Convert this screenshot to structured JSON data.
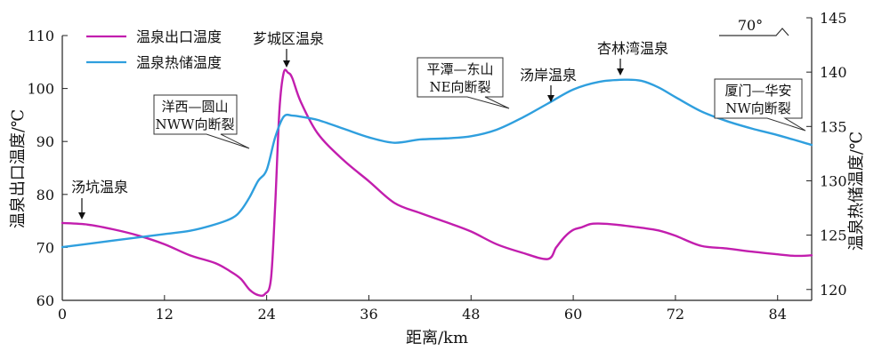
{
  "chart_data": {
    "type": "line",
    "xlabel": "距离/km",
    "ylabel_left": "温泉出口温度/℃",
    "ylabel_right": "温泉热储温度/℃",
    "xlim": [
      0,
      88
    ],
    "ylim_left": [
      60,
      110
    ],
    "ylim_right": [
      119,
      145
    ],
    "x_ticks": [
      "0",
      "12",
      "24",
      "36",
      "48",
      "60",
      "72",
      "84"
    ],
    "y_ticks_left": [
      "60",
      "70",
      "80",
      "90",
      "100",
      "110"
    ],
    "y_ticks_right": [
      "120",
      "125",
      "130",
      "135",
      "140",
      "145"
    ],
    "legend_placement": "top-left",
    "grid": false,
    "series": [
      {
        "name": "温泉出口温度",
        "axis": "left",
        "color": "#c21eae",
        "x": [
          0,
          3,
          6,
          9,
          12,
          15,
          18,
          20,
          21,
          22,
          23,
          23.8,
          24.5,
          25,
          25.5,
          26,
          26.5,
          27,
          28,
          30,
          33,
          36,
          39,
          42,
          45,
          48,
          51,
          54,
          57,
          58,
          59,
          60,
          61,
          62,
          63,
          65,
          68,
          70,
          72,
          75,
          78,
          81,
          84,
          86,
          88
        ],
        "values": [
          74.6,
          74.3,
          73.4,
          72.2,
          70.6,
          68.5,
          67.0,
          65.2,
          64.0,
          62.0,
          61.0,
          61.2,
          64,
          78,
          96,
          103,
          103,
          102,
          97.5,
          91.5,
          86.5,
          82.5,
          78.4,
          76.5,
          74.8,
          73.0,
          70.6,
          69.0,
          67.8,
          70,
          72,
          73.3,
          73.8,
          74.4,
          74.5,
          74.3,
          73.7,
          73.2,
          72.2,
          70.3,
          69.8,
          69.2,
          68.7,
          68.4,
          68.5
        ]
      },
      {
        "name": "温泉热储温度",
        "axis": "right",
        "color": "#2f9fde",
        "x": [
          0,
          3,
          6,
          9,
          12,
          15,
          18,
          20,
          21,
          22,
          23,
          24,
          25,
          26,
          27,
          28,
          30,
          33,
          36,
          39,
          42,
          45,
          48,
          51,
          54,
          57,
          60,
          63,
          66,
          68,
          70,
          72,
          75,
          78,
          81,
          84,
          88
        ],
        "values": [
          123.9,
          124.2,
          124.5,
          124.8,
          125.1,
          125.4,
          126.0,
          126.6,
          127.3,
          128.5,
          130.0,
          131.0,
          134.0,
          135.9,
          136.0,
          135.9,
          135.6,
          134.8,
          134.0,
          133.5,
          133.8,
          133.9,
          134.1,
          134.7,
          135.8,
          137.1,
          138.4,
          139.1,
          139.3,
          139.2,
          138.6,
          137.7,
          136.4,
          135.5,
          134.8,
          134.2,
          133.3
        ]
      }
    ],
    "annotations": [
      {
        "id": "tangkeng",
        "label": "汤坑温泉",
        "x": 2.3,
        "series": 0
      },
      {
        "id": "lucheng",
        "label": "芗城区温泉",
        "x": 26.0,
        "series": 0
      },
      {
        "id": "tangan",
        "label": "汤岸温泉",
        "x": 57.3,
        "series": 1
      },
      {
        "id": "xinglinwan",
        "label": "杏林湾温泉",
        "x": 65.8,
        "series": 1
      }
    ],
    "fault_boxes": [
      {
        "id": "yangxi",
        "lines": [
          "洋西—圆山",
          "NWW向断裂"
        ]
      },
      {
        "id": "pingtan",
        "lines": [
          "平潭—东山",
          "NE向断裂"
        ]
      },
      {
        "id": "xiamen",
        "lines": [
          "厦门—华安",
          "NW向断裂"
        ]
      }
    ],
    "dip_label": "70°"
  }
}
